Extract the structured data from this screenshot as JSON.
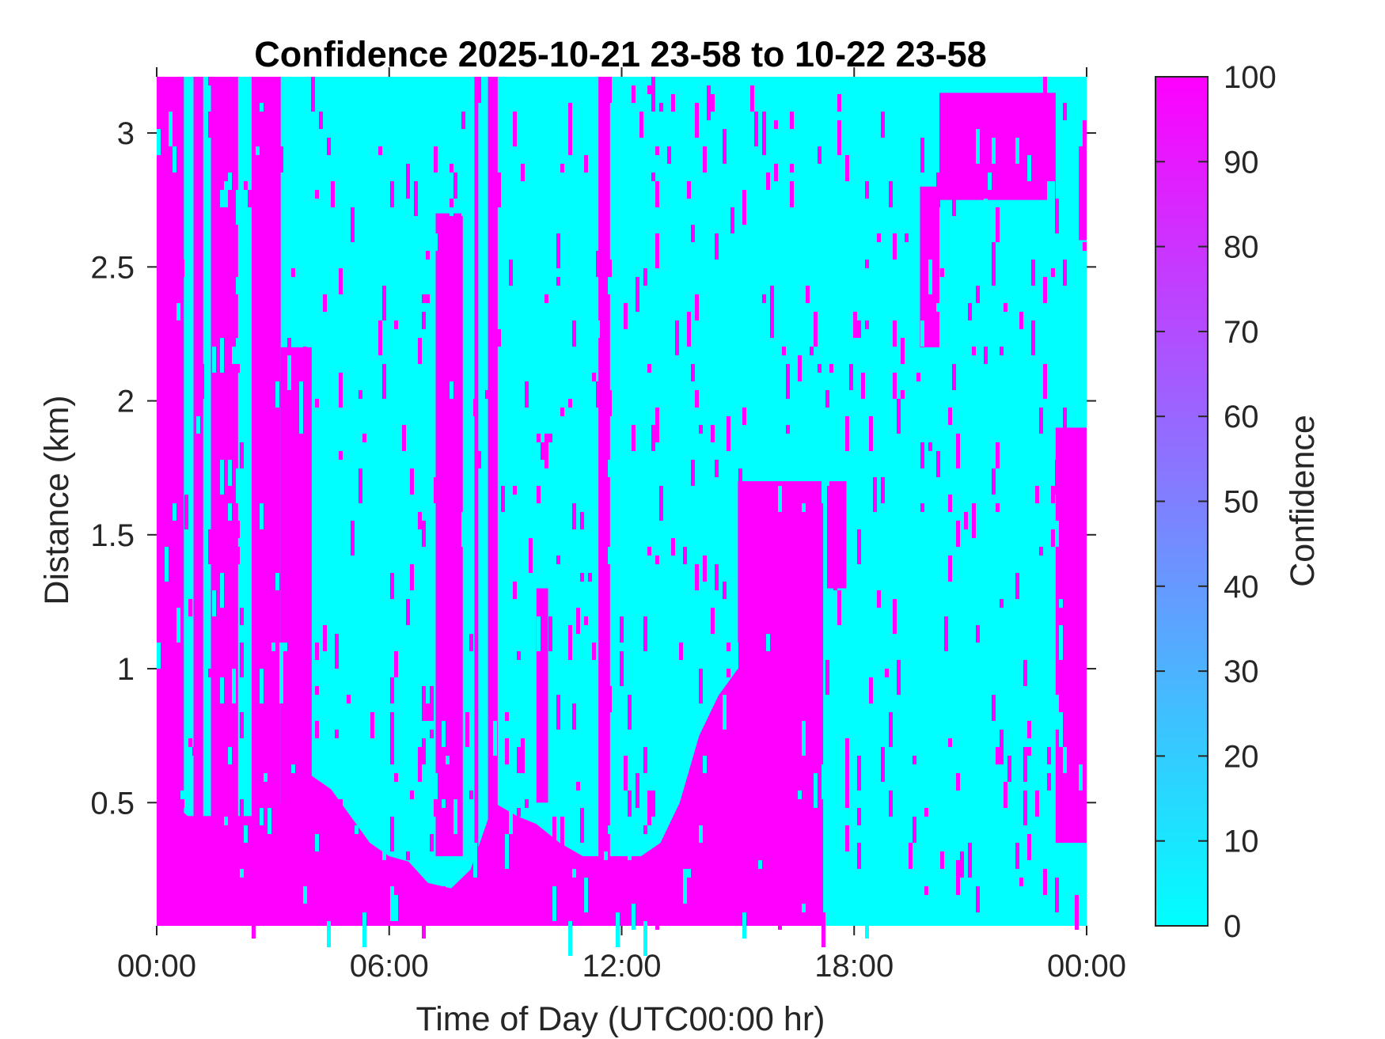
{
  "chart_data": {
    "type": "heatmap",
    "title": "Confidence 2025-10-21 23-58 to 10-22 23-58",
    "xlabel": "Time of Day (UTC00:00 hr)",
    "ylabel": "Distance (km)",
    "x_ticks": [
      "00:00",
      "06:00",
      "12:00",
      "18:00",
      "00:00"
    ],
    "y_ticks": [
      "0.5",
      "1",
      "1.5",
      "2",
      "2.5",
      "3"
    ],
    "y_tick_values": [
      0.5,
      1,
      1.5,
      2,
      2.5,
      3
    ],
    "x_range_hours": [
      0,
      24
    ],
    "y_range_km": [
      0.04,
      3.21
    ],
    "colorbar": {
      "label": "Confidence",
      "ticks": [
        "0",
        "10",
        "20",
        "30",
        "40",
        "50",
        "60",
        "70",
        "80",
        "90",
        "100"
      ],
      "range": [
        0,
        100
      ],
      "colormap": [
        "#00ffff",
        "#ff00ff"
      ]
    },
    "colors": {
      "low": "#00ffff",
      "high": "#ff00ff"
    },
    "high_confidence_profile": {
      "description_units": "for each time (hours), distance range (km) where confidence is 100; elsewhere 0",
      "surface_layer_top_km": [
        [
          0.0,
          0.65
        ],
        [
          0.4,
          0.5
        ],
        [
          0.8,
          0.45
        ],
        [
          1.5,
          0.45
        ],
        [
          2.5,
          0.45
        ],
        [
          3.2,
          0.5
        ],
        [
          4.0,
          0.6
        ],
        [
          4.5,
          0.55
        ],
        [
          5.0,
          0.45
        ],
        [
          5.5,
          0.35
        ],
        [
          6.0,
          0.3
        ],
        [
          6.5,
          0.28
        ],
        [
          7.0,
          0.2
        ],
        [
          7.6,
          0.18
        ],
        [
          8.1,
          0.25
        ],
        [
          8.7,
          0.5
        ],
        [
          9.3,
          0.45
        ],
        [
          9.8,
          0.42
        ],
        [
          10.4,
          0.35
        ],
        [
          11.0,
          0.3
        ],
        [
          11.5,
          0.3
        ],
        [
          12.0,
          0.3
        ],
        [
          12.5,
          0.3
        ],
        [
          13.0,
          0.35
        ],
        [
          13.5,
          0.5
        ],
        [
          14.0,
          0.75
        ],
        [
          14.5,
          0.9
        ],
        [
          15.0,
          1.0
        ],
        [
          15.1,
          0.0
        ],
        [
          24.0,
          0.0
        ]
      ],
      "columns": [
        {
          "t": [
            0.0,
            0.7
          ],
          "km": [
            0.04,
            3.21
          ]
        },
        {
          "t": [
            0.95,
            1.2
          ],
          "km": [
            0.04,
            3.21
          ]
        },
        {
          "t": [
            1.4,
            2.1
          ],
          "km": [
            0.04,
            3.21
          ]
        },
        {
          "t": [
            2.45,
            3.2
          ],
          "km": [
            0.04,
            3.21
          ]
        },
        {
          "t": [
            3.2,
            4.0
          ],
          "km": [
            0.04,
            2.2
          ]
        },
        {
          "t": [
            7.2,
            7.9
          ],
          "km": [
            0.3,
            2.7
          ]
        },
        {
          "t": [
            8.2,
            8.3
          ],
          "km": [
            0.04,
            3.21
          ]
        },
        {
          "t": [
            8.55,
            8.8
          ],
          "km": [
            0.04,
            3.21
          ]
        },
        {
          "t": [
            9.8,
            10.1
          ],
          "km": [
            0.5,
            1.3
          ]
        },
        {
          "t": [
            11.4,
            11.7
          ],
          "km": [
            0.04,
            3.21
          ]
        },
        {
          "t": [
            15.0,
            17.2
          ],
          "km": [
            0.04,
            1.7
          ]
        },
        {
          "t": [
            17.3,
            17.8
          ],
          "km": [
            1.3,
            1.7
          ]
        },
        {
          "t": [
            19.7,
            20.2
          ],
          "km": [
            2.2,
            2.8
          ]
        },
        {
          "t": [
            20.2,
            23.2
          ],
          "km": [
            2.75,
            3.15
          ]
        },
        {
          "t": [
            23.2,
            24.0
          ],
          "km": [
            0.35,
            1.9
          ]
        },
        {
          "t": [
            23.8,
            24.0
          ],
          "km": [
            2.6,
            2.95
          ]
        }
      ]
    }
  }
}
